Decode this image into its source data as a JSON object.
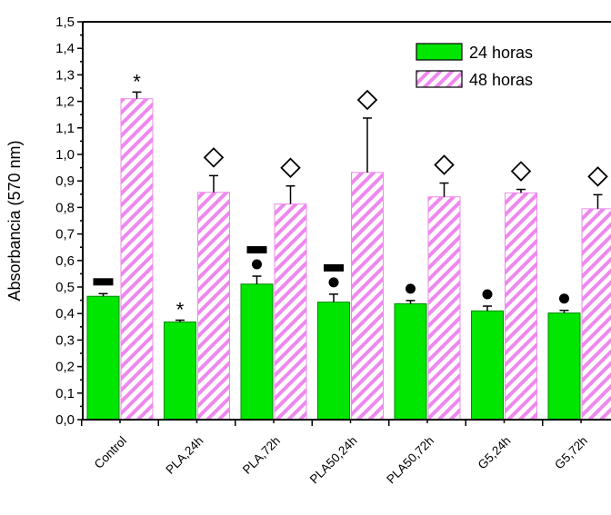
{
  "chart_data": {
    "type": "bar",
    "title": "",
    "xlabel": "",
    "ylabel": "Absorbancia (570 nm)",
    "ylim": [
      0,
      1.5
    ],
    "yticks": [
      "0,0",
      "0,1",
      "0,2",
      "0,3",
      "0,4",
      "0,5",
      "0,6",
      "0,7",
      "0,8",
      "0,9",
      "1,0",
      "1,1",
      "1,2",
      "1,3",
      "1,4",
      "1,5"
    ],
    "categories": [
      "Control",
      "PLA,24h",
      "PLA,72h",
      "PLA50,24h",
      "PLA50,72h",
      "G5,24h",
      "G5,72h"
    ],
    "series": [
      {
        "name": "24 horas",
        "color": "#00e600",
        "pattern": "solid",
        "values": [
          0.465,
          0.368,
          0.511,
          0.443,
          0.437,
          0.41,
          0.402
        ],
        "errors": [
          0.01,
          0.007,
          0.03,
          0.03,
          0.012,
          0.018,
          0.01
        ],
        "markers": [
          [
            "dash"
          ],
          [
            "asterisk"
          ],
          [
            "dot",
            "dash"
          ],
          [
            "dot",
            "dash"
          ],
          [
            "dot"
          ],
          [
            "dot"
          ],
          [
            "dot"
          ]
        ]
      },
      {
        "name": "48 horas",
        "color": "#ee88ee",
        "pattern": "hatched",
        "values": [
          1.21,
          0.857,
          0.813,
          0.932,
          0.84,
          0.855,
          0.795
        ],
        "errors": [
          0.025,
          0.063,
          0.068,
          0.205,
          0.052,
          0.013,
          0.053
        ],
        "markers": [
          [
            "asterisk"
          ],
          [
            "diamond"
          ],
          [
            "diamond"
          ],
          [
            "diamond"
          ],
          [
            "diamond"
          ],
          [
            "diamond"
          ],
          [
            "diamond"
          ]
        ]
      }
    ],
    "marker_symbols": {
      "asterisk": "*"
    },
    "legend": {
      "placement": "top-right",
      "entries": [
        "24 horas",
        "48 horas"
      ]
    },
    "grid": false
  }
}
